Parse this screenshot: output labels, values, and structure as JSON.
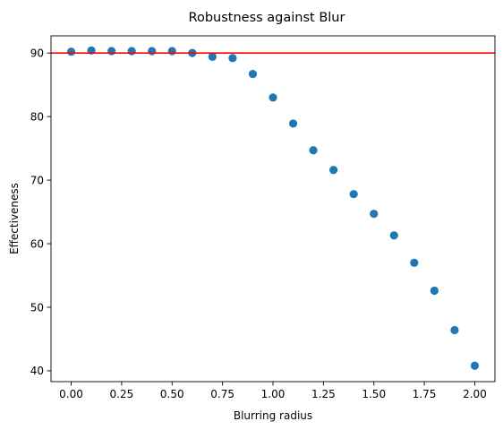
{
  "chart_data": {
    "type": "scatter",
    "title": "Robustness against Blur",
    "xlabel": "Blurring radius",
    "ylabel": "Effectiveness",
    "xlim": [
      -0.1,
      2.1
    ],
    "ylim": [
      38.3,
      92.7
    ],
    "xticks": [
      0.0,
      0.25,
      0.5,
      0.75,
      1.0,
      1.25,
      1.5,
      1.75,
      2.0
    ],
    "xtick_labels": [
      "0.00",
      "0.25",
      "0.50",
      "0.75",
      "1.00",
      "1.25",
      "1.50",
      "1.75",
      "2.00"
    ],
    "yticks": [
      40,
      50,
      60,
      70,
      80,
      90
    ],
    "ytick_labels": [
      "40",
      "50",
      "60",
      "70",
      "80",
      "90"
    ],
    "grid": false,
    "series": [
      {
        "marker_color": "#1f77b4",
        "x": [
          0.0,
          0.1,
          0.2,
          0.3,
          0.4,
          0.5,
          0.6,
          0.7,
          0.8,
          0.9,
          1.0,
          1.1,
          1.2,
          1.3,
          1.4,
          1.5,
          1.6,
          1.7,
          1.8,
          1.9,
          2.0
        ],
        "y": [
          90.2,
          90.4,
          90.3,
          90.3,
          90.3,
          90.3,
          90.0,
          89.4,
          89.2,
          86.7,
          83.0,
          78.9,
          74.7,
          71.6,
          67.8,
          64.7,
          61.3,
          57.0,
          52.6,
          46.4,
          40.8
        ]
      }
    ],
    "reference_line": {
      "orientation": "horizontal",
      "y": 90,
      "color": "#ff0000"
    }
  }
}
